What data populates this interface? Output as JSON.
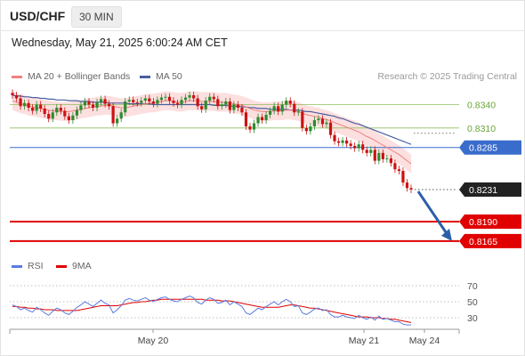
{
  "header": {
    "symbol": "USD/CHF",
    "timeframe": "30 MIN"
  },
  "datetime": "Wednesday, May 21, 2025 6:00:24 AM CET",
  "legend": {
    "ma20": "MA 20 + Bollinger Bands",
    "ma50": "MA 50",
    "rsi": "RSI",
    "ma9": "9MA",
    "credit": "Research © 2025 Trading Central"
  },
  "colors": {
    "ma20": "#f08080",
    "band": "#fbd9d9",
    "ma50": "#4a5f9e",
    "up": "#2e8b2e",
    "down": "#cc1111",
    "green_line": "#8fbf5e",
    "blue_line": "#3a6ccc",
    "red_line": "#e00000",
    "current": "#222222",
    "arrow": "#2c5ea8",
    "rsi": "#5b7be0",
    "rsi_ma": "#e00000"
  },
  "chart_data": [
    {
      "type": "candlestick",
      "title": "USD/CHF",
      "timeframe": "30 MIN",
      "x_ticks": [
        "May 20",
        "May 21",
        "May 24"
      ],
      "ylim": [
        0.815,
        0.836
      ],
      "levels": [
        {
          "value": 0.834,
          "label": "0.8340",
          "kind": "resistance"
        },
        {
          "value": 0.831,
          "label": "0.8310",
          "kind": "resistance"
        },
        {
          "value": 0.8285,
          "label": "0.8285",
          "kind": "pivot"
        },
        {
          "value": 0.8231,
          "label": "0.8231",
          "kind": "current"
        },
        {
          "value": 0.819,
          "label": "0.8190",
          "kind": "support"
        },
        {
          "value": 0.8165,
          "label": "0.8165",
          "kind": "support"
        }
      ],
      "close": [
        0.8352,
        0.8348,
        0.8338,
        0.8342,
        0.8336,
        0.8332,
        0.834,
        0.8335,
        0.8328,
        0.8322,
        0.833,
        0.8336,
        0.8332,
        0.8325,
        0.832,
        0.8326,
        0.8333,
        0.8339,
        0.8344,
        0.834,
        0.8336,
        0.8343,
        0.8347,
        0.8341,
        0.8338,
        0.8316,
        0.8322,
        0.833,
        0.8344,
        0.8346,
        0.8343,
        0.8342,
        0.8345,
        0.8348,
        0.8344,
        0.8341,
        0.8346,
        0.8349,
        0.835,
        0.8345,
        0.8342,
        0.834,
        0.8346,
        0.8349,
        0.8352,
        0.8348,
        0.8338,
        0.8334,
        0.8345,
        0.835,
        0.8347,
        0.8338,
        0.834,
        0.8344,
        0.8333,
        0.834,
        0.8336,
        0.833,
        0.8312,
        0.8308,
        0.8316,
        0.8324,
        0.832,
        0.8327,
        0.8332,
        0.8338,
        0.8331,
        0.834,
        0.8345,
        0.8341,
        0.833,
        0.8331,
        0.831,
        0.8306,
        0.8312,
        0.832,
        0.8322,
        0.8315,
        0.8317,
        0.8301,
        0.8293,
        0.8291,
        0.8294,
        0.829,
        0.8287,
        0.8284,
        0.8289,
        0.8282,
        0.8278,
        0.8282,
        0.8268,
        0.8278,
        0.827,
        0.8271,
        0.8265,
        0.8257,
        0.8255,
        0.824,
        0.8233,
        0.8231
      ],
      "ma20": [
        0.8345,
        0.8343,
        0.8341,
        0.834,
        0.8338,
        0.8337,
        0.8336,
        0.8335,
        0.8334,
        0.8333,
        0.8332,
        0.8332,
        0.8331,
        0.8331,
        0.8331,
        0.8332,
        0.8333,
        0.8334,
        0.8335,
        0.8336,
        0.8337,
        0.8338,
        0.8338,
        0.8339,
        0.8339,
        0.8338,
        0.8337,
        0.8336,
        0.8336,
        0.8337,
        0.8338,
        0.8339,
        0.834,
        0.8341,
        0.8342,
        0.8342,
        0.8343,
        0.8344,
        0.8345,
        0.8345,
        0.8344,
        0.8343,
        0.8343,
        0.8344,
        0.8345,
        0.8345,
        0.8345,
        0.8344,
        0.8344,
        0.8344,
        0.8344,
        0.8343,
        0.8343,
        0.8343,
        0.8342,
        0.8341,
        0.834,
        0.8339,
        0.8337,
        0.8335,
        0.8333,
        0.8332,
        0.8331,
        0.8331,
        0.8331,
        0.8332,
        0.8332,
        0.8332,
        0.8333,
        0.8333,
        0.8332,
        0.8331,
        0.8329,
        0.8327,
        0.8326,
        0.8325,
        0.8324,
        0.8322,
        0.8321,
        0.8319,
        0.8317,
        0.8315,
        0.8313,
        0.8311,
        0.8309,
        0.8307,
        0.8305,
        0.8302,
        0.8299,
        0.8297,
        0.8294,
        0.8291,
        0.8288,
        0.8285,
        0.8282,
        0.8279,
        0.8276,
        0.8272,
        0.8268,
        0.8264
      ],
      "ma50": [
        0.8352,
        0.8351,
        0.8351,
        0.835,
        0.835,
        0.8349,
        0.8349,
        0.8348,
        0.8348,
        0.8347,
        0.8347,
        0.8346,
        0.8346,
        0.8346,
        0.8345,
        0.8345,
        0.8345,
        0.8344,
        0.8344,
        0.8344,
        0.8343,
        0.8343,
        0.8343,
        0.8343,
        0.8342,
        0.8342,
        0.8342,
        0.8342,
        0.8342,
        0.8341,
        0.8341,
        0.8341,
        0.8341,
        0.8341,
        0.8341,
        0.834,
        0.834,
        0.834,
        0.834,
        0.834,
        0.834,
        0.834,
        0.834,
        0.834,
        0.834,
        0.834,
        0.834,
        0.834,
        0.834,
        0.834,
        0.8339,
        0.8339,
        0.8339,
        0.8339,
        0.8338,
        0.8338,
        0.8338,
        0.8337,
        0.8337,
        0.8336,
        0.8336,
        0.8335,
        0.8335,
        0.8335,
        0.8334,
        0.8334,
        0.8334,
        0.8334,
        0.8334,
        0.8333,
        0.8333,
        0.8333,
        0.8332,
        0.8331,
        0.8331,
        0.833,
        0.8329,
        0.8328,
        0.8327,
        0.8326,
        0.8325,
        0.8323,
        0.8322,
        0.832,
        0.8318,
        0.8316,
        0.8315,
        0.8313,
        0.8311,
        0.8309,
        0.8307,
        0.8305,
        0.8303,
        0.8301,
        0.8299,
        0.8297,
        0.8295,
        0.8293,
        0.8291,
        0.8289
      ],
      "band_width": 0.0012,
      "forecast": {
        "from": 0.8231,
        "to": 0.8165
      }
    },
    {
      "type": "line",
      "title": "RSI",
      "ylim": [
        20,
        80
      ],
      "yticks": [
        70,
        50,
        30
      ],
      "series": [
        {
          "name": "RSI",
          "values": [
            46,
            44,
            40,
            42,
            39,
            37,
            43,
            40,
            36,
            33,
            38,
            42,
            40,
            36,
            34,
            38,
            43,
            46,
            50,
            47,
            44,
            48,
            52,
            48,
            46,
            36,
            40,
            45,
            52,
            54,
            52,
            51,
            53,
            55,
            52,
            50,
            53,
            55,
            56,
            53,
            51,
            50,
            53,
            55,
            57,
            55,
            49,
            47,
            52,
            55,
            53,
            48,
            49,
            52,
            46,
            50,
            47,
            44,
            36,
            34,
            38,
            42,
            40,
            44,
            47,
            50,
            46,
            50,
            53,
            50,
            44,
            45,
            36,
            34,
            37,
            41,
            42,
            39,
            40,
            34,
            31,
            31,
            33,
            31,
            30,
            29,
            33,
            30,
            28,
            31,
            27,
            32,
            28,
            29,
            27,
            25,
            25,
            22,
            21,
            21
          ]
        },
        {
          "name": "9MA",
          "values": [
            44,
            44,
            43,
            43,
            42,
            42,
            41,
            41,
            40,
            40,
            40,
            39,
            39,
            39,
            39,
            39,
            39,
            40,
            41,
            42,
            43,
            44,
            45,
            45,
            45,
            45,
            45,
            46,
            47,
            48,
            49,
            49,
            50,
            50,
            51,
            52,
            52,
            53,
            53,
            53,
            53,
            53,
            53,
            53,
            53,
            53,
            53,
            53,
            52,
            52,
            52,
            52,
            51,
            51,
            51,
            50,
            49,
            48,
            47,
            46,
            45,
            44,
            43,
            43,
            43,
            43,
            43,
            44,
            45,
            46,
            46,
            45,
            44,
            43,
            42,
            42,
            41,
            40,
            39,
            38,
            37,
            36,
            35,
            34,
            33,
            32,
            31,
            31,
            31,
            30,
            30,
            30,
            29,
            29,
            28,
            28,
            27,
            26,
            25,
            24
          ]
        }
      ]
    }
  ]
}
